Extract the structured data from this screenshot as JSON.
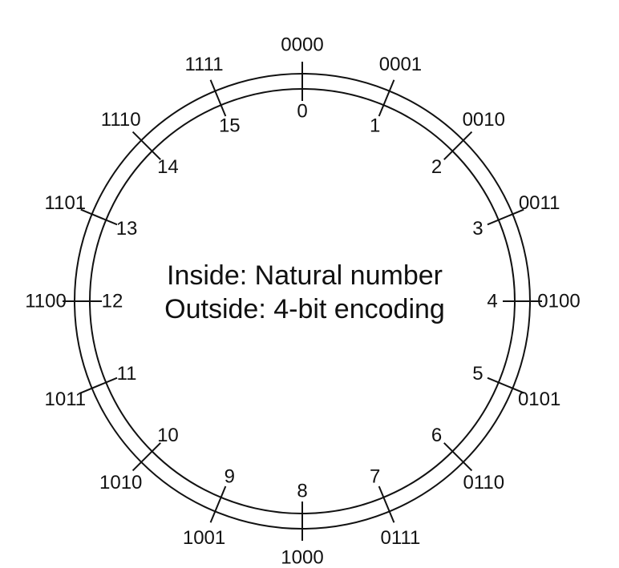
{
  "diagram": {
    "center_text": {
      "line1": "Inside: Natural number",
      "line2": "Outside: 4-bit encoding"
    },
    "segments": [
      {
        "number": "0",
        "code": "0000"
      },
      {
        "number": "1",
        "code": "0001"
      },
      {
        "number": "2",
        "code": "0010"
      },
      {
        "number": "3",
        "code": "0011"
      },
      {
        "number": "4",
        "code": "0100"
      },
      {
        "number": "5",
        "code": "0101"
      },
      {
        "number": "6",
        "code": "0110"
      },
      {
        "number": "7",
        "code": "0111"
      },
      {
        "number": "8",
        "code": "1000"
      },
      {
        "number": "9",
        "code": "1001"
      },
      {
        "number": "10",
        "code": "1010"
      },
      {
        "number": "11",
        "code": "1011"
      },
      {
        "number": "12",
        "code": "1100"
      },
      {
        "number": "13",
        "code": "1101"
      },
      {
        "number": "14",
        "code": "1110"
      },
      {
        "number": "15",
        "code": "1111"
      }
    ],
    "colors": {
      "stroke": "#111111",
      "background": "#ffffff"
    }
  }
}
